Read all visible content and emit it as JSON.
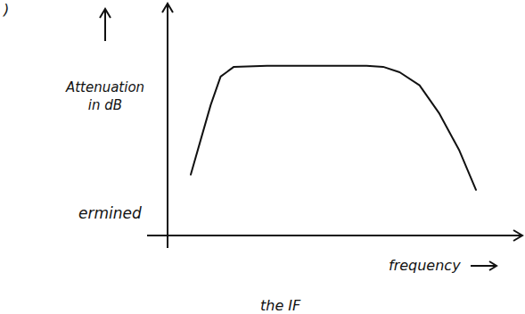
{
  "chart_data": {
    "type": "line",
    "ylabel": "Attenuation in dB",
    "xlabel": "frequency",
    "annotations": [
      ")",
      "ermined",
      "the IF"
    ],
    "x": [
      0.7,
      1.0,
      1.3,
      1.6,
      2.0,
      3.0,
      4.0,
      5.0,
      6.0,
      6.5,
      7.0,
      7.6,
      8.2,
      8.8,
      9.3
    ],
    "values": [
      2.8,
      4.4,
      6.0,
      7.3,
      7.75,
      7.8,
      7.8,
      7.8,
      7.8,
      7.75,
      7.5,
      6.9,
      5.6,
      3.9,
      2.1
    ],
    "xlim": [
      0,
      10
    ],
    "ylim": [
      0,
      10
    ],
    "xticks": [],
    "yticks": [],
    "tick_labels": false,
    "grid": false,
    "color": "#111111"
  }
}
